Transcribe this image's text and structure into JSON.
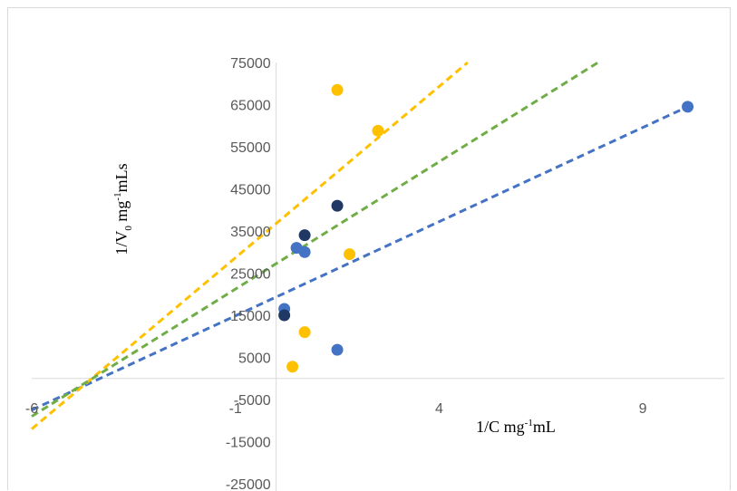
{
  "chart_data": {
    "type": "scatter",
    "title": "",
    "xlabel": {
      "base": "1/C mg",
      "sup": "-1",
      "rest": "mL"
    },
    "ylabel": {
      "base": "1/V",
      "sub": "0",
      "mid": " mg",
      "sup": "-1",
      "rest": "mLs"
    },
    "xlim": [
      -6,
      11
    ],
    "ylim": [
      -25000,
      75000
    ],
    "x_ticks": [
      -6,
      -1,
      4,
      9
    ],
    "y_ticks": [
      75000,
      65000,
      55000,
      45000,
      35000,
      25000,
      15000,
      5000,
      -5000,
      -15000,
      -25000
    ],
    "grid": false,
    "legend": "none",
    "series": [
      {
        "color": "#4472c4",
        "points": [
          [
            0.2,
            16500
          ],
          [
            0.5,
            31000
          ],
          [
            0.7,
            30000
          ],
          [
            1.5,
            6800
          ],
          [
            10.1,
            64500
          ]
        ],
        "trendline": {
          "x_from": -6,
          "x_to": 10.1,
          "y_from": -7500,
          "y_to": 64500
        }
      },
      {
        "color": "#203864",
        "points": [
          [
            0.2,
            15000
          ],
          [
            0.7,
            34000
          ],
          [
            1.5,
            41000
          ]
        ],
        "trendline": null
      },
      {
        "color": "#ffc000",
        "points": [
          [
            0.4,
            2800
          ],
          [
            0.7,
            11000
          ],
          [
            1.5,
            68500
          ],
          [
            1.8,
            29500
          ],
          [
            2.5,
            58800
          ]
        ],
        "trendline": {
          "x_from": -6,
          "x_to": 4.7,
          "y_from": -12000,
          "y_to": 75000
        }
      },
      {
        "color": "#70ad47",
        "points": [],
        "trendline": {
          "x_from": -6,
          "x_to": 7.9,
          "y_from": -9000,
          "y_to": 75000
        }
      }
    ]
  }
}
